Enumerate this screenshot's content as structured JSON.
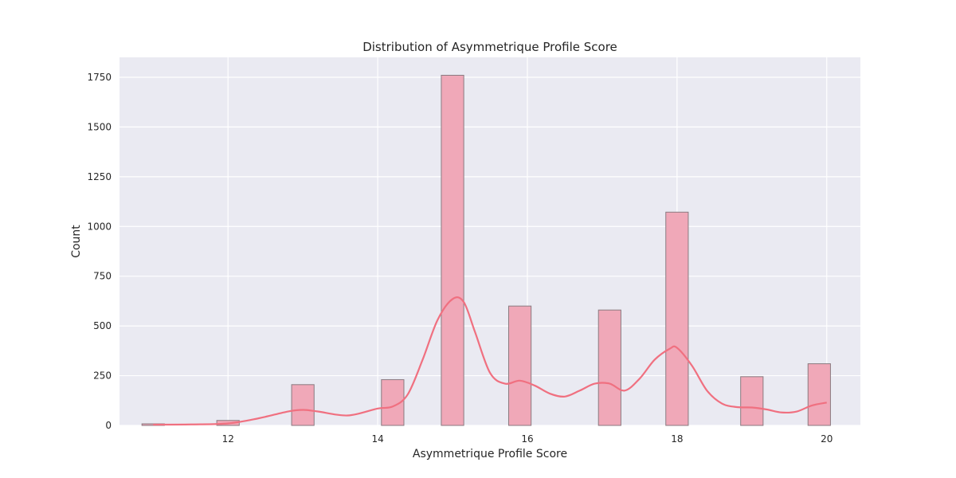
{
  "chart_data": {
    "type": "bar",
    "title": "Distribution of Asymmetrique Profile Score",
    "xlabel": "Asymmetrique Profile Score",
    "ylabel": "Count",
    "xlim": [
      10.55,
      20.45
    ],
    "ylim": [
      0,
      1850
    ],
    "xticks": [
      12,
      14,
      16,
      18,
      20
    ],
    "yticks": [
      0,
      250,
      500,
      750,
      1000,
      1250,
      1500,
      1750
    ],
    "grid": true,
    "bar_width": 0.3,
    "bars": [
      {
        "x": 11,
        "value": 8
      },
      {
        "x": 12,
        "value": 25
      },
      {
        "x": 13,
        "value": 205
      },
      {
        "x": 14.2,
        "value": 230
      },
      {
        "x": 15,
        "value": 1760
      },
      {
        "x": 15.9,
        "value": 600
      },
      {
        "x": 17.1,
        "value": 580
      },
      {
        "x": 18,
        "value": 1072
      },
      {
        "x": 19,
        "value": 245
      },
      {
        "x": 19.9,
        "value": 310
      }
    ],
    "kde": {
      "x": [
        11.0,
        11.5,
        12.0,
        12.4,
        12.8,
        13.0,
        13.2,
        13.6,
        14.0,
        14.2,
        14.4,
        14.6,
        14.8,
        15.0,
        15.15,
        15.3,
        15.5,
        15.7,
        15.9,
        16.1,
        16.3,
        16.5,
        16.7,
        16.9,
        17.1,
        17.3,
        17.5,
        17.7,
        17.9,
        18.0,
        18.2,
        18.4,
        18.6,
        18.8,
        19.0,
        19.2,
        19.4,
        19.6,
        19.8,
        20.0
      ],
      "y": [
        4,
        5,
        10,
        35,
        70,
        78,
        70,
        50,
        85,
        95,
        155,
        330,
        530,
        635,
        620,
        470,
        265,
        210,
        225,
        200,
        160,
        145,
        175,
        210,
        210,
        175,
        235,
        330,
        385,
        390,
        300,
        175,
        110,
        92,
        90,
        80,
        65,
        70,
        100,
        115
      ]
    },
    "colors": {
      "bar_fill": "#f0a8b8",
      "bar_edge": "#8a7a80",
      "kde_line": "#f07080",
      "plot_bg": "#eaeaf2",
      "grid": "#ffffff"
    }
  }
}
